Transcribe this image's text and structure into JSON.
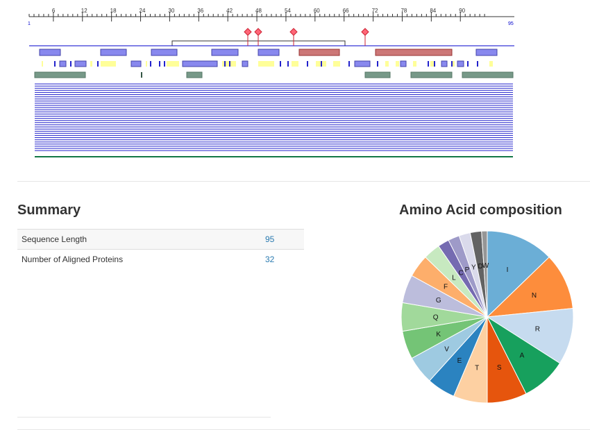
{
  "ruler": {
    "start_label": "1",
    "end_label": "95",
    "ticks": [
      "6",
      "12",
      "18",
      "24",
      "30",
      "36",
      "42",
      "48",
      "54",
      "60",
      "66",
      "72",
      "78",
      "84",
      "90"
    ]
  },
  "colors": {
    "ruler": "#333333",
    "axis": "#0000cc",
    "domain": "#8888ee",
    "domain_border": "#4444aa",
    "region": "#cc7777",
    "region_border": "#993333",
    "yellow": "#ffff99",
    "blue_mark": "#2222cc",
    "gray_green": "#779988",
    "variant": "#ff6677",
    "alignment_line": "#2222cc",
    "bottom_line": "#117744",
    "link": "#2a7ab0"
  },
  "summary": {
    "title": "Summary",
    "rows": [
      {
        "label": "Sequence Length",
        "value": "95"
      },
      {
        "label": "Number of Aligned Proteins",
        "value": "32"
      }
    ]
  },
  "composition": {
    "title": "Amino Acid composition",
    "slices": [
      {
        "label": "I",
        "value": 12,
        "color": "#6baed6"
      },
      {
        "label": "N",
        "value": 10,
        "color": "#fd8d3c"
      },
      {
        "label": "R",
        "value": 10,
        "color": "#c6dbef"
      },
      {
        "label": "A",
        "value": 8,
        "color": "#17a05d"
      },
      {
        "label": "S",
        "value": 7,
        "color": "#e6550d"
      },
      {
        "label": "T",
        "value": 6,
        "color": "#fdd0a2"
      },
      {
        "label": "E",
        "value": 5,
        "color": "#2b83c0"
      },
      {
        "label": "V",
        "value": 5,
        "color": "#9ecae1"
      },
      {
        "label": "K",
        "value": 5,
        "color": "#74c476"
      },
      {
        "label": "Q",
        "value": 5,
        "color": "#a1d99b"
      },
      {
        "label": "G",
        "value": 5,
        "color": "#bcbddc"
      },
      {
        "label": "F",
        "value": 4,
        "color": "#fdae6b"
      },
      {
        "label": "L",
        "value": 3,
        "color": "#c7e9c0"
      },
      {
        "label": "C",
        "value": 2,
        "color": "#756bb1"
      },
      {
        "label": "P",
        "value": 2,
        "color": "#9e9ac8"
      },
      {
        "label": "Y",
        "value": 2,
        "color": "#dadaeb"
      },
      {
        "label": "D",
        "value": 2,
        "color": "#636363"
      },
      {
        "label": "W",
        "value": 1,
        "color": "#969696"
      }
    ]
  }
}
